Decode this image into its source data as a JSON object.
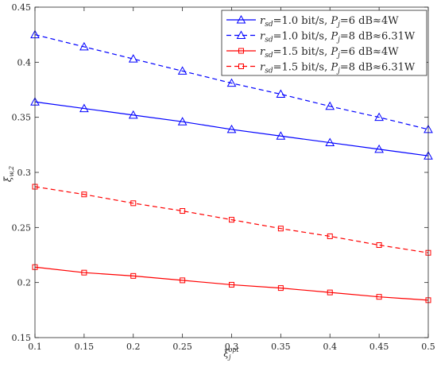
{
  "chart_data": {
    "type": "line",
    "title": "",
    "xlabel": "ξ_j^opt",
    "ylabel": "ξ_w,2",
    "xlim": [
      0.1,
      0.5
    ],
    "ylim": [
      0.15,
      0.45
    ],
    "xticks": [
      "0.1",
      "0.15",
      "0.2",
      "0.25",
      "0.3",
      "0.35",
      "0.4",
      "0.45",
      "0.5"
    ],
    "yticks": [
      "0.15",
      "0.2",
      "0.25",
      "0.3",
      "0.35",
      "0.4",
      "0.45"
    ],
    "grid": false,
    "legend_position": "top-right",
    "x": [
      0.1,
      0.15,
      0.2,
      0.25,
      0.3,
      0.35,
      0.4,
      0.45,
      0.5
    ],
    "series": [
      {
        "name": "r_sd=1.0 bit/s, P_j=6 dB≈4W",
        "color": "#0000ff",
        "line_style": "solid",
        "marker": "triangle",
        "values": [
          0.364,
          0.358,
          0.352,
          0.346,
          0.339,
          0.333,
          0.327,
          0.321,
          0.315
        ]
      },
      {
        "name": "r_sd=1.0 bit/s, P_j=8 dB≈6.31W",
        "color": "#0000ff",
        "line_style": "dashed",
        "marker": "triangle",
        "values": [
          0.425,
          0.414,
          0.403,
          0.392,
          0.381,
          0.371,
          0.36,
          0.35,
          0.339
        ]
      },
      {
        "name": "r_sd=1.5 bit/s, P_j=6 dB≈4W",
        "color": "#ff0000",
        "line_style": "solid",
        "marker": "square",
        "values": [
          0.214,
          0.209,
          0.206,
          0.202,
          0.198,
          0.195,
          0.191,
          0.187,
          0.184
        ]
      },
      {
        "name": "r_sd=1.5 bit/s, P_j=8 dB≈6.31W",
        "color": "#ff0000",
        "line_style": "dashed",
        "marker": "square",
        "values": [
          0.287,
          0.28,
          0.272,
          0.265,
          0.257,
          0.249,
          0.242,
          0.234,
          0.227
        ]
      }
    ],
    "legend": [
      {
        "rsd": "1.0",
        "pj": "6",
        "power": "4W"
      },
      {
        "rsd": "1.0",
        "pj": "8",
        "power": "6.31W"
      },
      {
        "rsd": "1.5",
        "pj": "6",
        "power": "4W"
      },
      {
        "rsd": "1.5",
        "pj": "8",
        "power": "6.31W"
      }
    ],
    "legend_text": {
      "r_main": "r",
      "r_sub": "sd",
      "eq_rate": "=",
      "rate_unit": " bit/s, ",
      "p_main": "P",
      "p_sub": "j",
      "eq_power": "=",
      "db_approx": " dB≈"
    },
    "axis_text": {
      "x_main": "ξ",
      "x_sub": "j",
      "x_sup": "opt",
      "y_main": "ξ",
      "y_sub": "w,2"
    }
  }
}
